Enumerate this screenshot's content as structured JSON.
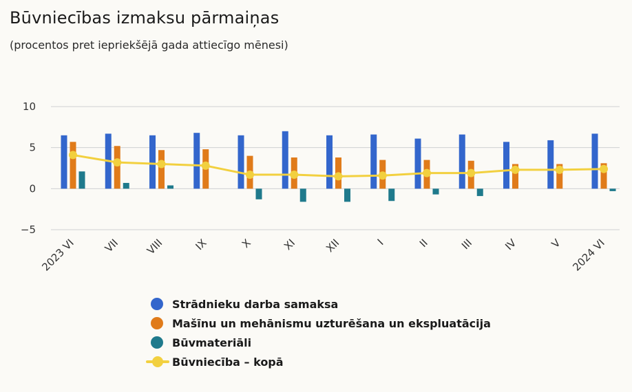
{
  "chart_data": {
    "type": "bar",
    "title": "Būvniecības izmaksu pārmaiņas",
    "subtitle": "(procentos pret iepriekšējā gada attiecīgo mēnesi)",
    "categories": [
      "2023 VI",
      "VII",
      "VIII",
      "IX",
      "X",
      "XI",
      "XII",
      "I",
      "II",
      "III",
      "IV",
      "V",
      "2024 VI"
    ],
    "ylim": [
      -5,
      10
    ],
    "yticks": [
      10,
      5,
      0,
      -5
    ],
    "ytick_labels": [
      "10",
      "5",
      "0",
      "−5"
    ],
    "grid": true,
    "legend_position": "bottom",
    "series": [
      {
        "name": "Strādnieku darba samaksa",
        "type": "bar",
        "color": "#3366cc",
        "values": [
          6.5,
          6.7,
          6.5,
          6.8,
          6.5,
          7.0,
          6.5,
          6.6,
          6.1,
          6.6,
          5.7,
          5.9,
          6.7
        ]
      },
      {
        "name": "Mašīnu un mehānismu uzturēšana un ekspluatācija",
        "type": "bar",
        "color": "#e07b1a",
        "values": [
          5.7,
          5.2,
          4.7,
          4.8,
          4.0,
          3.8,
          3.8,
          3.5,
          3.5,
          3.4,
          3.0,
          3.0,
          3.1
        ]
      },
      {
        "name": "Būvmateriāli",
        "type": "bar",
        "color": "#1f7a8c",
        "values": [
          2.1,
          0.7,
          0.4,
          0.0,
          -1.3,
          -1.6,
          -1.6,
          -1.5,
          -0.7,
          -0.9,
          0.0,
          0.0,
          -0.3
        ]
      },
      {
        "name": "Būvniecība – kopā",
        "type": "line",
        "color": "#f2d03f",
        "values": [
          4.1,
          3.2,
          3.0,
          2.8,
          1.7,
          1.7,
          1.5,
          1.6,
          1.9,
          1.9,
          2.3,
          2.3,
          2.4
        ]
      }
    ]
  }
}
